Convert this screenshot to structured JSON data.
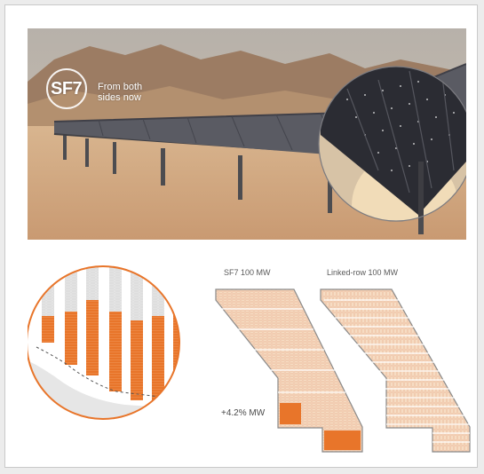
{
  "photo": {
    "logo_mark": "SF7",
    "tagline_line1": "From both",
    "tagline_line2": "sides now"
  },
  "diagram": {
    "left_label": "SF7 100 MW",
    "right_label": "Linked-row 100 MW",
    "gain_label": "+4.2% MW"
  },
  "colors": {
    "accent_orange": "#e8752a",
    "panel_fill": "#f6dcc3",
    "panel_stroke": "#e6a77c",
    "outline_gray": "#8a8a8a"
  }
}
